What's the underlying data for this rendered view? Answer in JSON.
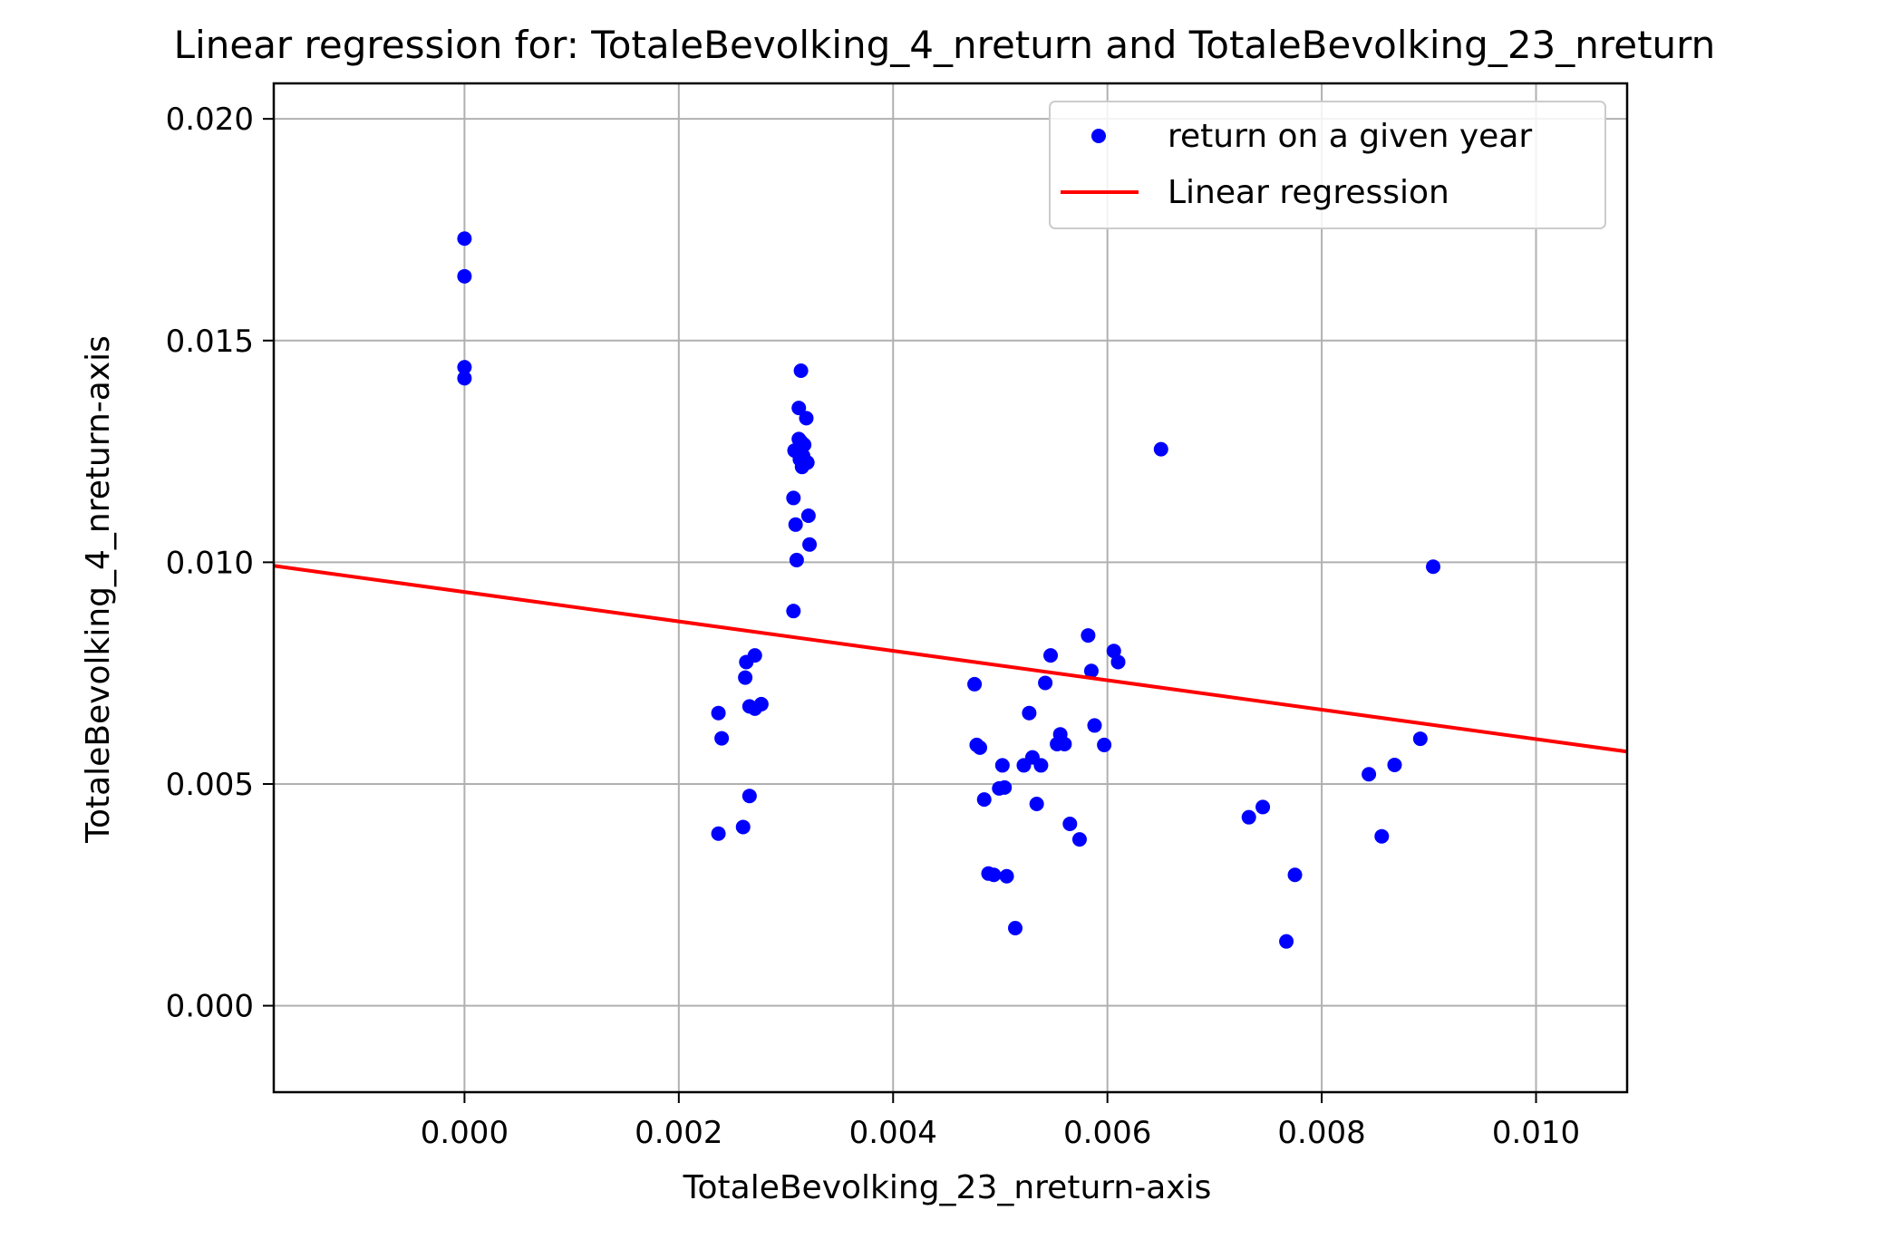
{
  "chart_data": {
    "type": "scatter",
    "title": "Linear regression for: TotaleBevolking_4_nreturn and TotaleBevolking_23_nreturn",
    "xlabel": "TotaleBevolking_23_nreturn-axis",
    "ylabel": "TotaleBevolking_4_nreturn-axis",
    "xlim": [
      -0.00178,
      0.01085
    ],
    "ylim": [
      -0.00195,
      0.0208
    ],
    "x_ticks": [
      "0.000",
      "0.002",
      "0.004",
      "0.006",
      "0.008",
      "0.010"
    ],
    "y_ticks": [
      "0.000",
      "0.005",
      "0.010",
      "0.015",
      "0.020"
    ],
    "grid": true,
    "legend_position": "top-right",
    "legend": [
      "return on a given year",
      "Linear regression"
    ],
    "colors": {
      "points": "#0000ff",
      "line": "#ff0000",
      "grid": "#b0b0b0"
    },
    "series": [
      {
        "name": "return on a given year",
        "kind": "scatter",
        "points": [
          [
            0.0,
            0.0173
          ],
          [
            0.0,
            0.01645
          ],
          [
            0.0,
            0.0144
          ],
          [
            0.0,
            0.01415
          ],
          [
            0.00314,
            0.01432
          ],
          [
            0.00312,
            0.01348
          ],
          [
            0.00319,
            0.01325
          ],
          [
            0.00312,
            0.01278
          ],
          [
            0.00314,
            0.01272
          ],
          [
            0.00317,
            0.01265
          ],
          [
            0.00308,
            0.01252
          ],
          [
            0.00311,
            0.01248
          ],
          [
            0.00316,
            0.0124
          ],
          [
            0.00313,
            0.01232
          ],
          [
            0.0032,
            0.01225
          ],
          [
            0.00315,
            0.01215
          ],
          [
            0.00307,
            0.01145
          ],
          [
            0.00321,
            0.01105
          ],
          [
            0.00309,
            0.01085
          ],
          [
            0.00322,
            0.0104
          ],
          [
            0.0031,
            0.01005
          ],
          [
            0.00307,
            0.0089
          ],
          [
            0.00271,
            0.0079
          ],
          [
            0.00263,
            0.00775
          ],
          [
            0.00262,
            0.0074
          ],
          [
            0.00277,
            0.0068
          ],
          [
            0.00266,
            0.00675
          ],
          [
            0.00271,
            0.0067
          ],
          [
            0.00237,
            0.0066
          ],
          [
            0.0024,
            0.00603
          ],
          [
            0.00266,
            0.00473
          ],
          [
            0.0026,
            0.00403
          ],
          [
            0.00237,
            0.00388
          ],
          [
            0.0065,
            0.01255
          ],
          [
            0.00904,
            0.0099
          ],
          [
            0.00582,
            0.00835
          ],
          [
            0.00606,
            0.008
          ],
          [
            0.00547,
            0.0079
          ],
          [
            0.0061,
            0.00775
          ],
          [
            0.00585,
            0.00755
          ],
          [
            0.00476,
            0.00725
          ],
          [
            0.00542,
            0.00728
          ],
          [
            0.00527,
            0.0066
          ],
          [
            0.00588,
            0.00632
          ],
          [
            0.00556,
            0.00612
          ],
          [
            0.00478,
            0.00588
          ],
          [
            0.00481,
            0.00582
          ],
          [
            0.00553,
            0.0059
          ],
          [
            0.0056,
            0.0059
          ],
          [
            0.00597,
            0.00588
          ],
          [
            0.0053,
            0.0056
          ],
          [
            0.00538,
            0.00542
          ],
          [
            0.00522,
            0.00542
          ],
          [
            0.00502,
            0.00542
          ],
          [
            0.00504,
            0.00492
          ],
          [
            0.00499,
            0.0049
          ],
          [
            0.00485,
            0.00465
          ],
          [
            0.00534,
            0.00455
          ],
          [
            0.00565,
            0.0041
          ],
          [
            0.00574,
            0.00375
          ],
          [
            0.00489,
            0.00298
          ],
          [
            0.00494,
            0.00295
          ],
          [
            0.00506,
            0.00292
          ],
          [
            0.00514,
            0.00175
          ],
          [
            0.00892,
            0.00602
          ],
          [
            0.00868,
            0.00543
          ],
          [
            0.00844,
            0.00522
          ],
          [
            0.00745,
            0.00448
          ],
          [
            0.00732,
            0.00425
          ],
          [
            0.00856,
            0.00382
          ],
          [
            0.00775,
            0.00295
          ],
          [
            0.00767,
            0.00145
          ]
        ]
      },
      {
        "name": "Linear regression",
        "kind": "line",
        "x": [
          -0.00178,
          0.01085
        ],
        "y": [
          0.00992,
          0.00573
        ]
      }
    ]
  }
}
